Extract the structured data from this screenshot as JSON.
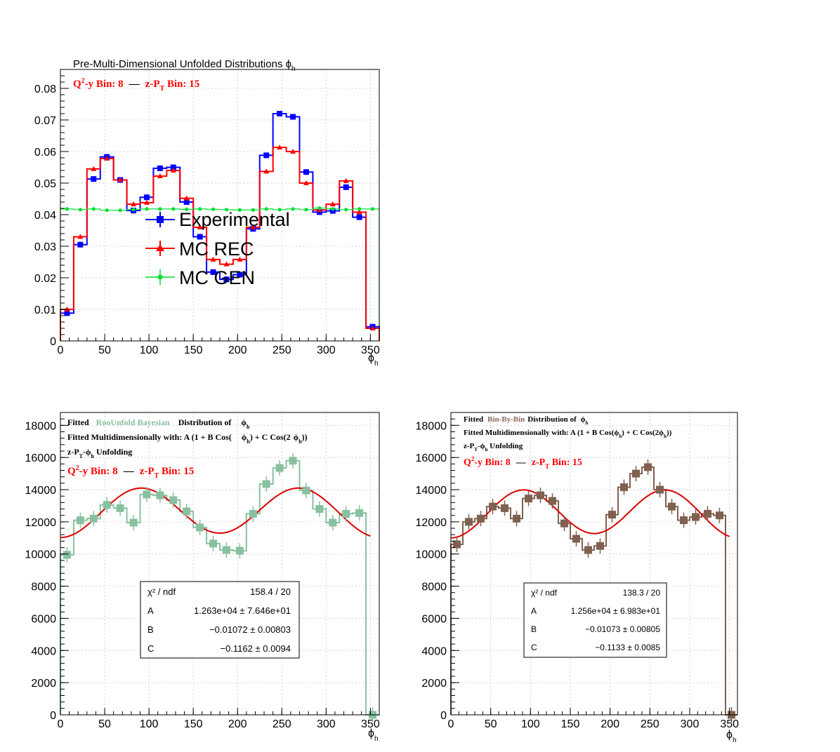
{
  "chart_data": [
    {
      "type": "histogram",
      "title": "Pre-Multi-Dimensional Unfolded Distributions ϕ",
      "title_sub": "h",
      "bin_label": {
        "q2y_part": "Q",
        "q2y_sup": "2",
        "q2y_tail": "-y Bin: 8",
        "dash": "—",
        "zpt_part": "z-P",
        "zpt_sub": "T",
        "zpt_tail": " Bin: 15"
      },
      "xlabel": "ϕ",
      "xlabel_sub": "h",
      "xlim": [
        0,
        360
      ],
      "ylim": [
        0,
        0.086
      ],
      "xticks": [
        0,
        50,
        100,
        150,
        200,
        250,
        300,
        350
      ],
      "yticks": [
        0,
        0.01,
        0.02,
        0.03,
        0.04,
        0.05,
        0.06,
        0.07,
        0.08
      ],
      "ytick_labels": [
        "0",
        "0.01",
        "0.02",
        "0.03",
        "0.04",
        "0.05",
        "0.06",
        "0.07",
        "0.08"
      ],
      "bin_width": 15,
      "bin_centers": [
        7.5,
        22.5,
        37.5,
        52.5,
        67.5,
        82.5,
        97.5,
        112.5,
        127.5,
        142.5,
        157.5,
        172.5,
        187.5,
        202.5,
        217.5,
        232.5,
        247.5,
        262.5,
        277.5,
        292.5,
        307.5,
        322.5,
        337.5,
        352.5
      ],
      "grid": true,
      "legend_position": "center-left",
      "series": [
        {
          "name": "Experimental",
          "color": "#0000ff",
          "marker": "square",
          "values": [
            0.0088,
            0.0305,
            0.0513,
            0.0583,
            0.051,
            0.0413,
            0.0455,
            0.0547,
            0.055,
            0.044,
            0.033,
            0.0218,
            0.0195,
            0.021,
            0.0355,
            0.0588,
            0.072,
            0.071,
            0.0535,
            0.0408,
            0.0412,
            0.0487,
            0.0392,
            0.0045
          ]
        },
        {
          "name": "MC REC",
          "color": "#ff0000",
          "marker": "triangle",
          "values": [
            0.01,
            0.033,
            0.0545,
            0.0578,
            0.051,
            0.0433,
            0.0438,
            0.0522,
            0.054,
            0.0452,
            0.036,
            0.0258,
            0.0243,
            0.0258,
            0.036,
            0.0537,
            0.0613,
            0.06,
            0.05,
            0.0415,
            0.0433,
            0.0507,
            0.0408,
            0.004
          ]
        },
        {
          "name": "MC GEN",
          "color": "#00e030",
          "marker": "circle",
          "values": [
            0.0418,
            0.0416,
            0.0418,
            0.0414,
            0.0414,
            0.0416,
            0.0418,
            0.0418,
            0.0418,
            0.0417,
            0.0418,
            0.0417,
            0.0416,
            0.0415,
            0.0415,
            0.0418,
            0.0416,
            0.0418,
            0.0416,
            0.0421,
            0.0418,
            0.0416,
            0.0418,
            0.0418
          ]
        }
      ]
    },
    {
      "type": "histogram",
      "title_parts": {
        "a": "Fitted",
        "method": "RooUnfold Bayesian",
        "b": "Distribution of",
        "phi": "ϕ",
        "phi_sub": "h"
      },
      "fit_line": {
        "a": "Fitted Multidimensionally with: A (1 + B Cos(",
        "phi": "ϕ",
        "sub": "h",
        "b": ") + C Cos(2",
        "phi2": "ϕ",
        "sub2": "h",
        "c": "))"
      },
      "unfold_line": {
        "a": "z-P",
        "sub_t": "T",
        "b": "-ϕ",
        "sub_h": "h",
        "c": " Unfolding"
      },
      "bin_label": {
        "q2y_part": "Q",
        "q2y_sup": "2",
        "q2y_tail": "-y Bin: 8",
        "dash": "—",
        "zpt_part": "z-P",
        "zpt_sub": "T",
        "zpt_tail": " Bin: 15"
      },
      "method_color": "#88c0a0",
      "xlabel": "ϕ",
      "xlabel_sub": "h",
      "xlim": [
        0,
        360
      ],
      "ylim": [
        0,
        18800
      ],
      "xticks": [
        0,
        50,
        100,
        150,
        200,
        250,
        300,
        350
      ],
      "yticks": [
        0,
        2000,
        4000,
        6000,
        8000,
        10000,
        12000,
        14000,
        16000,
        18000
      ],
      "ytick_labels": [
        "0",
        "2000",
        "4000",
        "6000",
        "8000",
        "10000",
        "12000",
        "14000",
        "16000",
        "18000"
      ],
      "bin_width": 15,
      "bin_centers": [
        7.5,
        22.5,
        37.5,
        52.5,
        67.5,
        82.5,
        97.5,
        112.5,
        127.5,
        142.5,
        157.5,
        172.5,
        187.5,
        202.5,
        217.5,
        232.5,
        247.5,
        262.5,
        277.5,
        292.5,
        307.5,
        322.5,
        337.5,
        352.5
      ],
      "grid": true,
      "series": [
        {
          "color": "#88c0a0",
          "marker": "square",
          "values": [
            9950,
            12100,
            12200,
            13050,
            12850,
            11950,
            13700,
            13650,
            13350,
            12650,
            11650,
            10650,
            10250,
            10200,
            12500,
            14350,
            15350,
            15800,
            13950,
            12800,
            11950,
            12500,
            12550,
            0
          ]
        }
      ],
      "fit": {
        "A": 12630,
        "B": -0.01072,
        "C": -0.1162,
        "color": "#dd0000"
      },
      "stats": [
        {
          "label": "χ² / ndf",
          "value": "158.4 / 20"
        },
        {
          "label": "A",
          "value": "1.263e+04 ± 7.646e+01"
        },
        {
          "label": "B",
          "value": "−0.01072 ± 0.00803"
        },
        {
          "label": "C",
          "value": "−0.1162 ± 0.0094"
        }
      ]
    },
    {
      "type": "histogram",
      "title_parts": {
        "a": "Fitted",
        "method": "Bin-By-Bin",
        "b": "Distribution of",
        "phi": "ϕ",
        "phi_sub": "h"
      },
      "fit_line": {
        "a": "Fitted Multidimensionally with: A (1 + B Cos(",
        "phi": "ϕ",
        "sub": "h",
        "b": ") + C Cos(2",
        "phi2": "ϕ",
        "sub2": "h",
        "c": "))"
      },
      "unfold_line": {
        "a": "z-P",
        "sub_t": "T",
        "b": "-ϕ",
        "sub_h": "h",
        "c": " Unfolding"
      },
      "bin_label": {
        "q2y_part": "Q",
        "q2y_sup": "2",
        "q2y_tail": "-y Bin: 8",
        "dash": "—",
        "zpt_part": "z-P",
        "zpt_sub": "T",
        "zpt_tail": " Bin: 15"
      },
      "method_color": "#8a6a58",
      "xlabel": "ϕ",
      "xlabel_sub": "h",
      "xlim": [
        0,
        360
      ],
      "ylim": [
        0,
        18800
      ],
      "xticks": [
        0,
        50,
        100,
        150,
        200,
        250,
        300,
        350
      ],
      "yticks": [
        0,
        2000,
        4000,
        6000,
        8000,
        10000,
        12000,
        14000,
        16000,
        18000
      ],
      "ytick_labels": [
        "0",
        "2000",
        "4000",
        "6000",
        "8000",
        "10000",
        "12000",
        "14000",
        "16000",
        "18000"
      ],
      "bin_width": 15,
      "bin_centers": [
        7.5,
        22.5,
        37.5,
        52.5,
        67.5,
        82.5,
        97.5,
        112.5,
        127.5,
        142.5,
        157.5,
        172.5,
        187.5,
        202.5,
        217.5,
        232.5,
        247.5,
        262.5,
        277.5,
        292.5,
        307.5,
        322.5,
        337.5,
        352.5
      ],
      "grid": true,
      "series": [
        {
          "color": "#806050",
          "marker": "square",
          "values": [
            10600,
            12000,
            12200,
            12950,
            12850,
            12200,
            13450,
            13650,
            13300,
            11900,
            10950,
            10250,
            10500,
            12450,
            14150,
            15000,
            15400,
            14000,
            12950,
            12100,
            12300,
            12500,
            12400,
            0
          ]
        }
      ],
      "fit": {
        "A": 12560,
        "B": -0.01073,
        "C": -0.1133,
        "color": "#dd0000"
      },
      "stats": [
        {
          "label": "χ² / ndf",
          "value": "138.3 / 20"
        },
        {
          "label": "A",
          "value": "1.256e+04 ± 6.983e+01"
        },
        {
          "label": "B",
          "value": "−0.01073 ± 0.00805"
        },
        {
          "label": "C",
          "value": "−0.1133 ± 0.0085"
        }
      ]
    }
  ]
}
